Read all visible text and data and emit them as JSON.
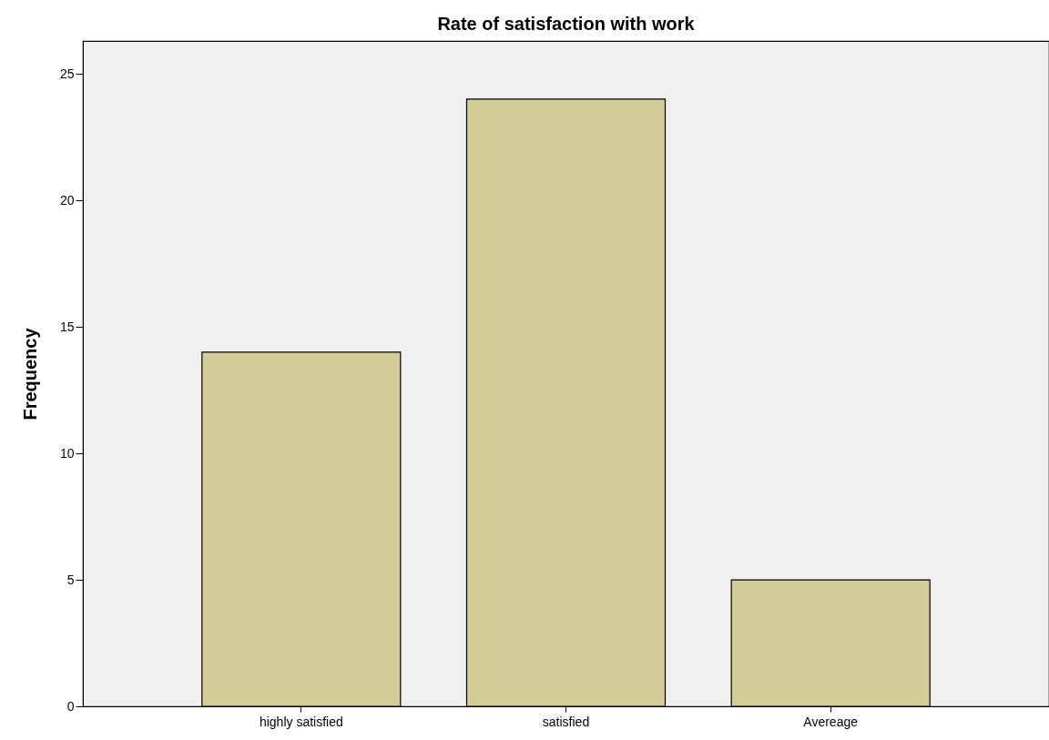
{
  "chart_data": {
    "type": "bar",
    "title": "Rate of satisfaction with work",
    "ylabel": "Frequency",
    "categories": [
      "highly satisfied",
      "satisfied",
      "Avereage"
    ],
    "values": [
      14,
      24,
      5
    ],
    "color": "#d3ce97",
    "ylim": [
      0,
      26.3
    ],
    "yticks": [
      0,
      5,
      10,
      15,
      20,
      25
    ]
  }
}
